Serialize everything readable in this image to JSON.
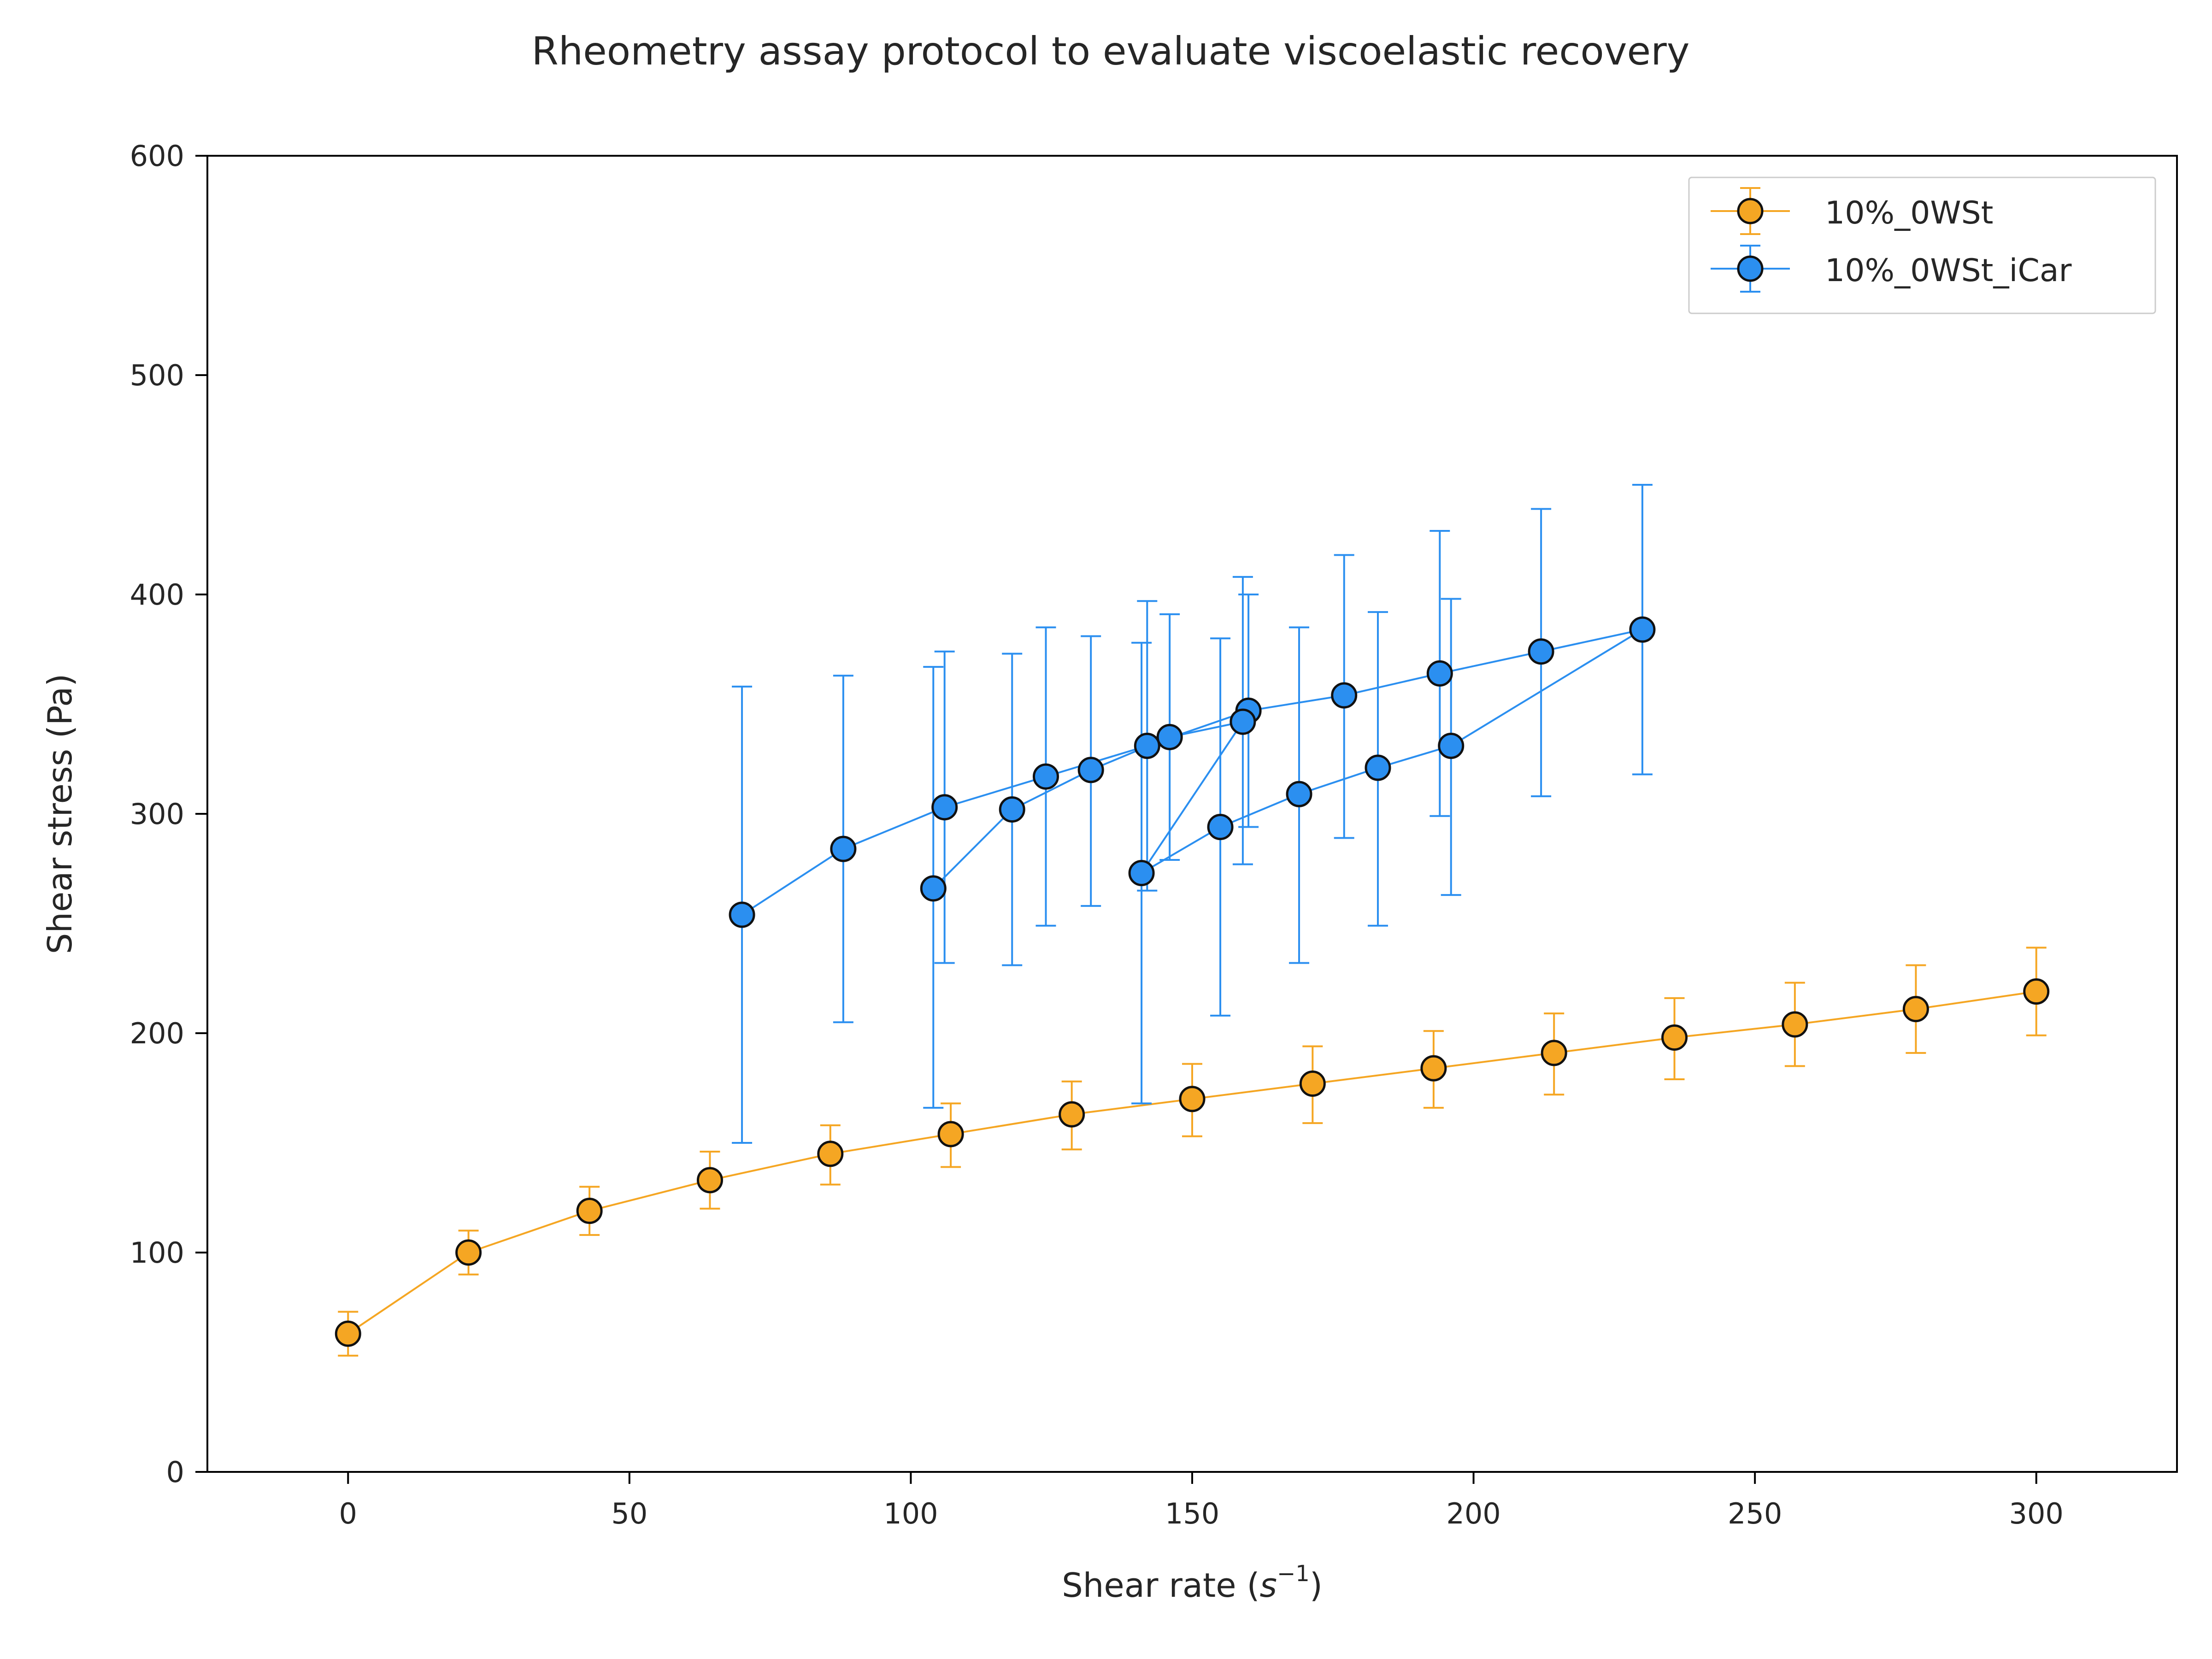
{
  "chart_data": {
    "type": "line",
    "title": "Rheometry assay protocol to evaluate viscoelastic recovery",
    "xlabel_main": "Shear rate (",
    "xlabel_symbol": "s",
    "xlabel_exp": "−1",
    "xlabel_close": ")",
    "ylabel": "Shear stress (Pa)",
    "xlim": [
      -25,
      325
    ],
    "ylim": [
      0,
      600
    ],
    "x_ticks": [
      0,
      50,
      100,
      150,
      200,
      250,
      300
    ],
    "y_ticks": [
      0,
      100,
      200,
      300,
      400,
      500,
      600
    ],
    "grid": false,
    "legend_position": "top-right",
    "series": [
      {
        "name": "10%_0WSt",
        "color": "#f5a623",
        "points": [
          {
            "x": 0,
            "y": 63,
            "err_low": 53,
            "err_high": 73
          },
          {
            "x": 21.4,
            "y": 100,
            "err_low": 90,
            "err_high": 110
          },
          {
            "x": 42.9,
            "y": 119,
            "err_low": 108,
            "err_high": 130
          },
          {
            "x": 64.3,
            "y": 133,
            "err_low": 120,
            "err_high": 146
          },
          {
            "x": 85.7,
            "y": 145,
            "err_low": 131,
            "err_high": 158
          },
          {
            "x": 107.1,
            "y": 154,
            "err_low": 139,
            "err_high": 168
          },
          {
            "x": 128.6,
            "y": 163,
            "err_low": 147,
            "err_high": 178
          },
          {
            "x": 150,
            "y": 170,
            "err_low": 153,
            "err_high": 186
          },
          {
            "x": 171.4,
            "y": 177,
            "err_low": 159,
            "err_high": 194
          },
          {
            "x": 192.9,
            "y": 184,
            "err_low": 166,
            "err_high": 201
          },
          {
            "x": 214.3,
            "y": 191,
            "err_low": 172,
            "err_high": 209
          },
          {
            "x": 235.7,
            "y": 198,
            "err_low": 179,
            "err_high": 216
          },
          {
            "x": 257.1,
            "y": 204,
            "err_low": 185,
            "err_high": 223
          },
          {
            "x": 278.6,
            "y": 211,
            "err_low": 191,
            "err_high": 231
          },
          {
            "x": 300,
            "y": 219,
            "err_low": 199,
            "err_high": 239
          }
        ]
      },
      {
        "name": "10%_0WSt_iCar",
        "color": "#2b8ff0",
        "points": [
          {
            "x": 70,
            "y": 254,
            "err_low": 150,
            "err_high": 358
          },
          {
            "x": 88,
            "y": 284,
            "err_low": 205,
            "err_high": 363
          },
          {
            "x": 106,
            "y": 303,
            "err_low": 232,
            "err_high": 374
          },
          {
            "x": 124,
            "y": 317,
            "err_low": 249,
            "err_high": 385
          },
          {
            "x": 142,
            "y": 331,
            "err_low": 265,
            "err_high": 397
          },
          {
            "x": 160,
            "y": 347,
            "err_low": 294,
            "err_high": 400
          },
          {
            "x": 177,
            "y": 354,
            "err_low": 289,
            "err_high": 418
          },
          {
            "x": 194,
            "y": 364,
            "err_low": 299,
            "err_high": 429
          },
          {
            "x": 212,
            "y": 374,
            "err_low": 308,
            "err_high": 439
          },
          {
            "x": 230,
            "y": 384,
            "err_low": 318,
            "err_high": 450
          },
          {
            "x": 196,
            "y": 331,
            "err_low": 263,
            "err_high": 398
          },
          {
            "x": 183,
            "y": 321,
            "err_low": 249,
            "err_high": 392
          },
          {
            "x": 169,
            "y": 309,
            "err_low": 232,
            "err_high": 385
          },
          {
            "x": 155,
            "y": 294,
            "err_low": 208,
            "err_high": 380
          },
          {
            "x": 141,
            "y": 273,
            "err_low": 168,
            "err_high": 378
          },
          {
            "x": 159,
            "y": 342,
            "err_low": 277,
            "err_high": 408
          },
          {
            "x": 146,
            "y": 335,
            "err_low": 279,
            "err_high": 391
          },
          {
            "x": 132,
            "y": 320,
            "err_low": 258,
            "err_high": 381
          },
          {
            "x": 118,
            "y": 302,
            "err_low": 231,
            "err_high": 373
          },
          {
            "x": 104,
            "y": 266,
            "err_low": 166,
            "err_high": 367
          }
        ]
      }
    ]
  }
}
